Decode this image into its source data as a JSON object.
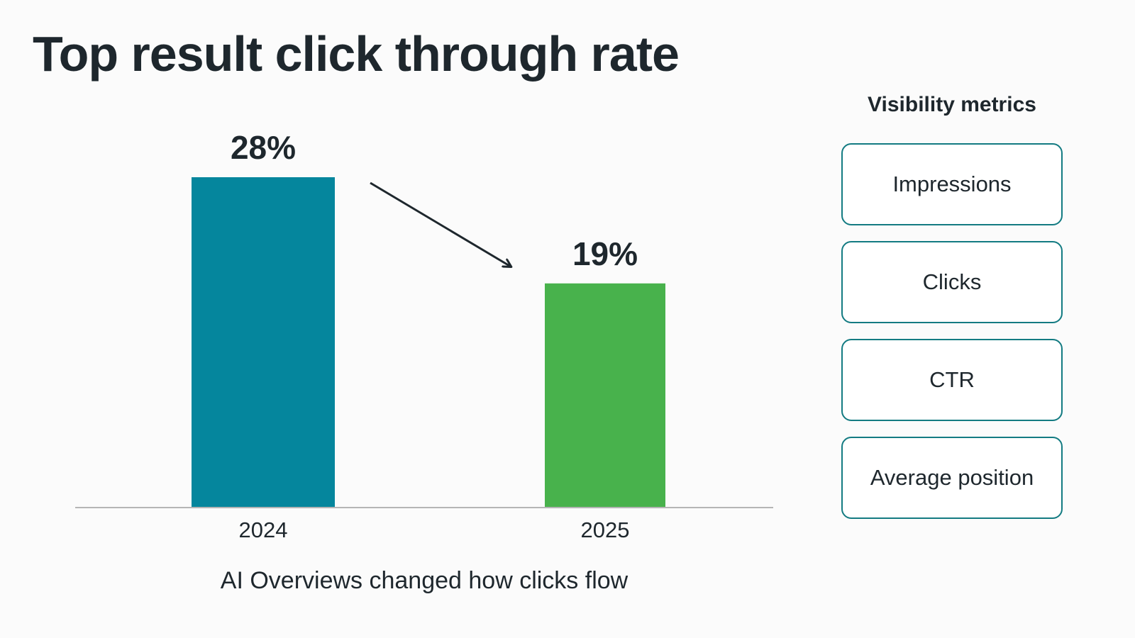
{
  "chart_data": {
    "type": "bar",
    "title": "Top result click through rate",
    "categories": [
      "2024",
      "2025"
    ],
    "values": [
      28,
      19
    ],
    "value_labels": [
      "28%",
      "19%"
    ],
    "unit": "%",
    "colors": [
      "#05869d",
      "#48b24c"
    ],
    "caption": "AI Overviews changed how clicks flow",
    "annotation": "arrow-down-right",
    "xlabel": "",
    "ylabel": "",
    "ylim": [
      0,
      28
    ],
    "grid": false,
    "legend": "none"
  },
  "metrics_panel": {
    "title": "Visibility metrics",
    "items": [
      "Impressions",
      "Clicks",
      "CTR",
      "Average position"
    ],
    "border_color": "#137b82"
  }
}
